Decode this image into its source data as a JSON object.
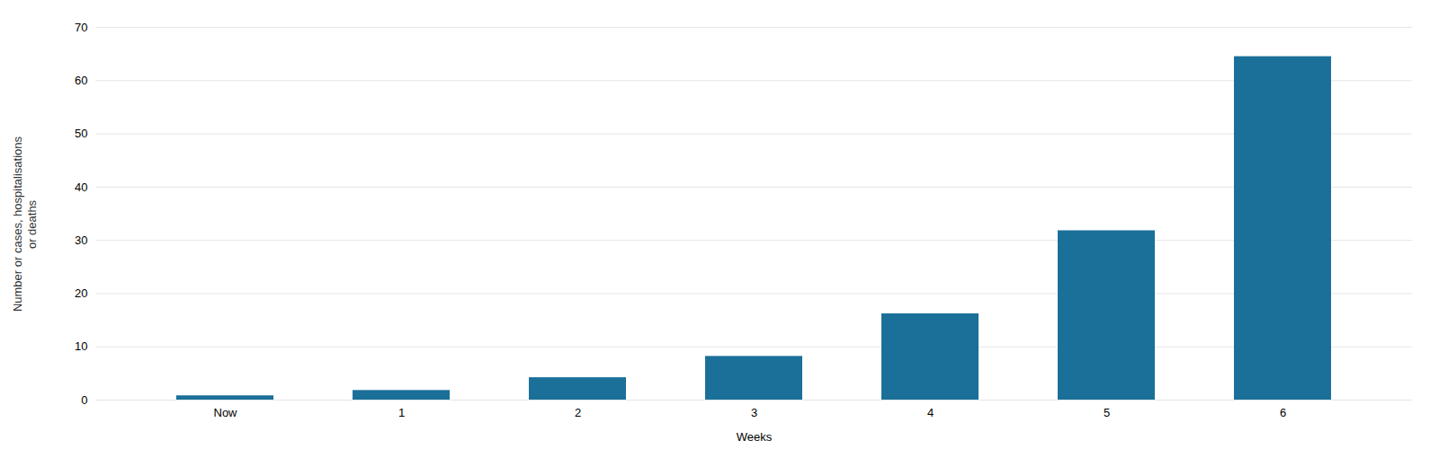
{
  "chart_data": {
    "type": "bar",
    "categories": [
      "Now",
      "1",
      "2",
      "3",
      "4",
      "5",
      "6"
    ],
    "values": [
      0.8,
      1.8,
      4.2,
      8.2,
      16.2,
      31.8,
      64.5
    ],
    "color": "#1a7099",
    "xlabel": "Weeks",
    "ylabel": "Number or cases, hospitalisations\nor deaths",
    "ylim": [
      0,
      70
    ],
    "yticks": [
      0,
      10,
      20,
      30,
      40,
      50,
      60,
      70
    ],
    "grid": true
  }
}
